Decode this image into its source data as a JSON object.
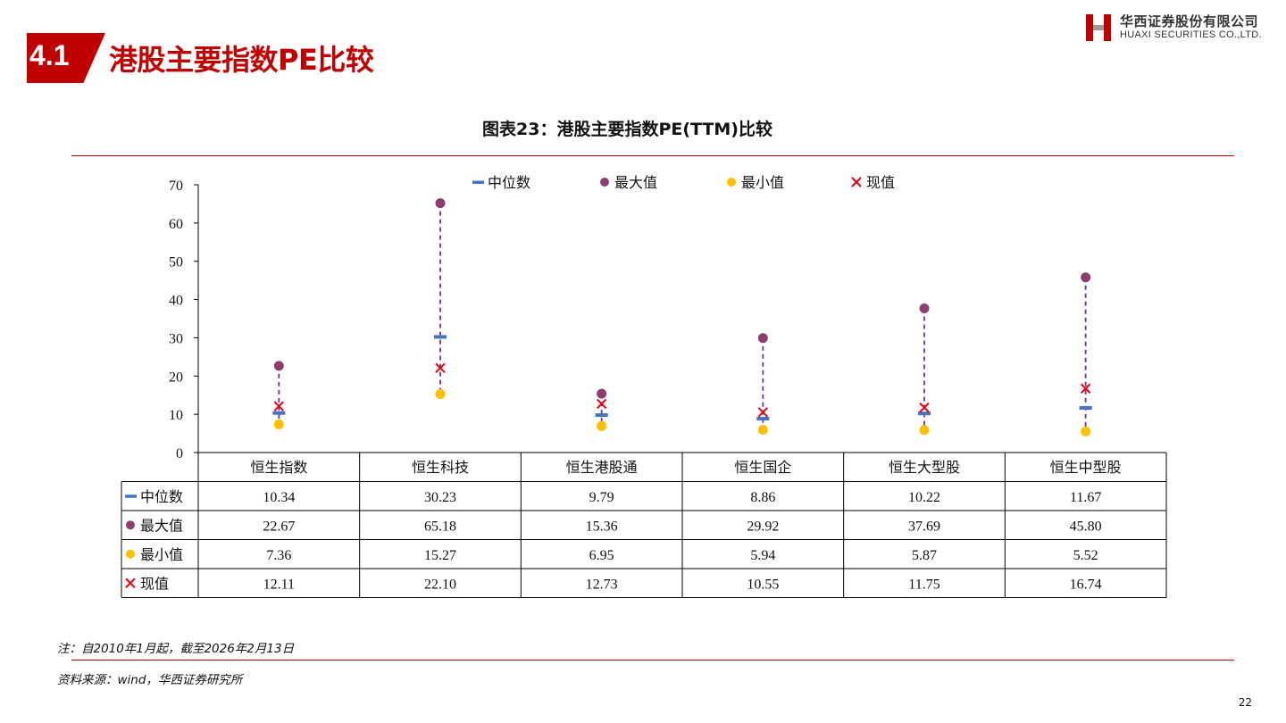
{
  "header": {
    "section_number": "4.1",
    "title": "港股主要指数PE比较",
    "logo_cn": "华西证券股份有限公司",
    "logo_en": "HUAXI SECURITIES CO.,LTD."
  },
  "figure": {
    "caption": "图表23：港股主要指数PE(TTM)比较"
  },
  "colors": {
    "accent_red": "#c00000",
    "median": "#4472c4",
    "max": "#8e3e6e",
    "min": "#ffc000",
    "current": "#e60012",
    "range_line": "#7030a0"
  },
  "chart_data": {
    "type": "scatter",
    "title": "",
    "xlabel": "",
    "ylabel": "",
    "ylim": [
      0,
      70
    ],
    "yticks": [
      0,
      10,
      20,
      30,
      40,
      50,
      60,
      70
    ],
    "grid": false,
    "legend_position": "top",
    "categories": [
      "恒生指数",
      "恒生科技",
      "恒生港股通",
      "恒生国企",
      "恒生大型股",
      "恒生中型股"
    ],
    "series": [
      {
        "name": "中位数",
        "marker": "dash",
        "values": [
          10.34,
          30.23,
          9.79,
          8.86,
          10.22,
          11.67
        ],
        "labels": [
          "10.34",
          "30.23",
          "9.79",
          "8.86",
          "10.22",
          "11.67"
        ]
      },
      {
        "name": "最大值",
        "marker": "circle",
        "values": [
          22.67,
          65.18,
          15.36,
          29.92,
          37.69,
          45.8
        ],
        "labels": [
          "22.67",
          "65.18",
          "15.36",
          "29.92",
          "37.69",
          "45.80"
        ]
      },
      {
        "name": "最小值",
        "marker": "circle",
        "values": [
          7.36,
          15.27,
          6.95,
          5.94,
          5.87,
          5.52
        ],
        "labels": [
          "7.36",
          "15.27",
          "6.95",
          "5.94",
          "5.87",
          "5.52"
        ]
      },
      {
        "name": "现值",
        "marker": "x",
        "values": [
          12.11,
          22.1,
          12.73,
          10.55,
          11.75,
          16.74
        ],
        "labels": [
          "12.11",
          "22.10",
          "12.73",
          "10.55",
          "11.75",
          "16.74"
        ]
      }
    ]
  },
  "notes": {
    "note": "注：自2010年1月起，截至2026年2月13日",
    "source": "资料来源：wind，华西证券研究所"
  },
  "page_number": "22"
}
